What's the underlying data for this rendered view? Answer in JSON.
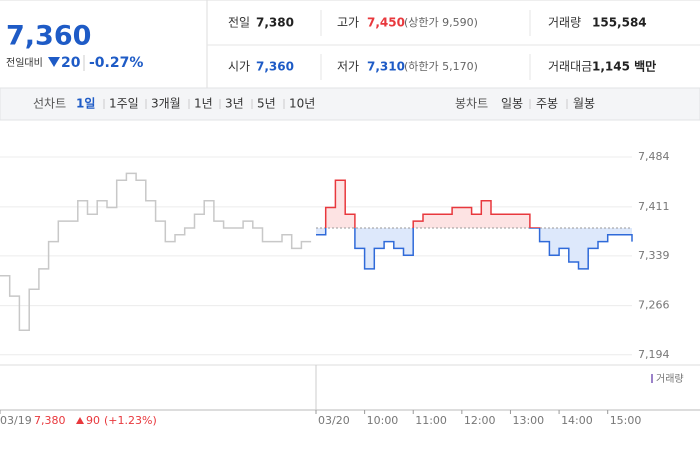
{
  "header": {
    "price": "7,360",
    "change_label": "전일대비",
    "change": "20",
    "change_pct": "-0.27%",
    "stats": [
      [
        {
          "label": "전일",
          "value": "7,380"
        },
        {
          "label": "고가",
          "value": "7,450",
          "note": "(상한가 9,590)"
        },
        {
          "label": "거래량",
          "value": "155,584"
        }
      ],
      [
        {
          "label": "시가",
          "value": "7,360"
        },
        {
          "label": "저가",
          "value": "7,310",
          "note": "(하한가 5,170)"
        },
        {
          "label": "거래대금",
          "value": "1,145 백만"
        }
      ]
    ]
  },
  "tabs": {
    "line_label": "선차트",
    "line_periods": [
      "1일",
      "1주일",
      "3개월",
      "1년",
      "3년",
      "5년",
      "10년"
    ],
    "candle_label": "봉차트",
    "candle_periods": [
      "일봉",
      "주봉",
      "월봉"
    ]
  },
  "footer": {
    "prev_close": "7,380",
    "prev_change": "90",
    "prev_change_pct": "(+1.23%)"
  },
  "chart_data": {
    "type": "line",
    "volume_label": "거래량",
    "reference": 7380,
    "series": [
      {
        "color": "#c8c8c8",
        "x": [
          0,
          12,
          24,
          36,
          48,
          60,
          72,
          84,
          96,
          108,
          120,
          132,
          144,
          156,
          168,
          180,
          192,
          204,
          216,
          228,
          240,
          252,
          264,
          276,
          288,
          300,
          312,
          324,
          336,
          348,
          360,
          372,
          384
        ],
        "values": [
          7310,
          7280,
          7230,
          7290,
          7320,
          7360,
          7390,
          7390,
          7420,
          7400,
          7420,
          7410,
          7450,
          7460,
          7450,
          7420,
          7390,
          7360,
          7370,
          7380,
          7400,
          7420,
          7390,
          7380,
          7380,
          7390,
          7380,
          7360,
          7360,
          7370,
          7350,
          7360,
          7360
        ]
      },
      {
        "color": "#2f6ad9",
        "color_up": "#e8383d",
        "x": [
          390,
          402,
          414,
          426,
          438,
          450,
          462,
          474,
          486,
          498,
          510,
          522,
          534,
          546,
          558,
          570,
          582,
          594,
          606,
          618,
          630,
          642,
          654,
          666,
          678,
          690,
          702,
          714,
          726,
          738,
          750,
          762,
          774,
          780
        ],
        "values": [
          7370,
          7410,
          7450,
          7400,
          7350,
          7320,
          7350,
          7360,
          7350,
          7340,
          7390,
          7400,
          7400,
          7400,
          7410,
          7410,
          7400,
          7420,
          7400,
          7400,
          7400,
          7400,
          7380,
          7360,
          7340,
          7350,
          7330,
          7320,
          7350,
          7360,
          7370,
          7370,
          7370,
          7360
        ]
      }
    ],
    "xlim": [
      0,
      780
    ],
    "xticks": [
      {
        "value": 0,
        "label": "03/19"
      },
      {
        "value": 390,
        "label": "03/20"
      },
      {
        "value": 450,
        "label": "10:00"
      },
      {
        "value": 510,
        "label": "11:00"
      },
      {
        "value": 570,
        "label": "12:00"
      },
      {
        "value": 630,
        "label": "13:00"
      },
      {
        "value": 690,
        "label": "14:00"
      },
      {
        "value": 750,
        "label": "15:00"
      }
    ],
    "ylim": [
      7179,
      7509
    ],
    "yticks": [
      {
        "value": 7484,
        "label": "7,484"
      },
      {
        "value": 7411,
        "label": "7,411"
      },
      {
        "value": 7339,
        "label": "7,339"
      },
      {
        "value": 7266,
        "label": "7,266"
      },
      {
        "value": 7194,
        "label": "7,194"
      }
    ],
    "grid": true
  }
}
